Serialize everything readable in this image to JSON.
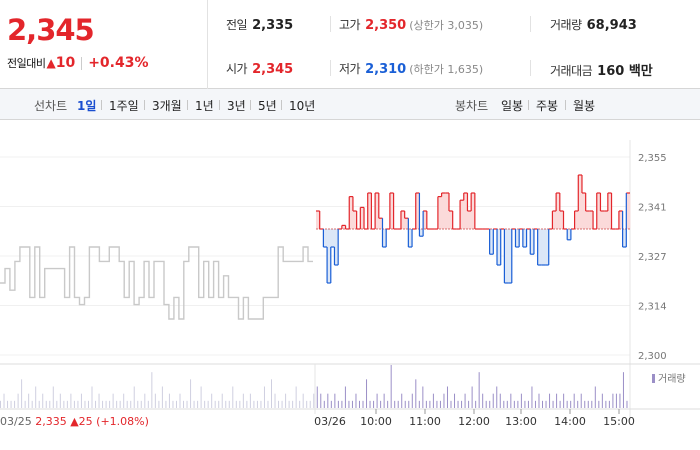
{
  "header": {
    "price": "2,345",
    "change_label": "전일대비",
    "change_arrow": "▲",
    "change_value": "10",
    "change_pct": "+0.43%",
    "prev_close": {
      "label": "전일",
      "value": "2,335"
    },
    "open": {
      "label": "시가",
      "value": "2,345"
    },
    "high": {
      "label": "고가",
      "value": "2,350",
      "sub": "(상한가 3,035)"
    },
    "low": {
      "label": "저가",
      "value": "2,310",
      "sub": "(하한가 1,635)"
    },
    "volume": {
      "label": "거래량",
      "value": "68,943"
    },
    "amount": {
      "label": "거래대금",
      "value": "160 백만"
    }
  },
  "tabs": {
    "line_label": "선차트",
    "line_tabs": [
      "1일",
      "1주일",
      "3개월",
      "1년",
      "3년",
      "5년",
      "10년"
    ],
    "active_line_tab": "1일",
    "candle_label": "봉차트",
    "candle_tabs": [
      "일봉",
      "주봉",
      "월봉"
    ]
  },
  "colors": {
    "up": "#e3262b",
    "down": "#1a5fd6",
    "prev_day": "#c9c9c9",
    "volume": "#9b8fc7"
  },
  "chart_data": {
    "type": "line",
    "y_ticks": [
      "2,355",
      "2,341",
      "2,327",
      "2,314",
      "2,300"
    ],
    "ylim": [
      2300,
      2355
    ],
    "baseline": 2335,
    "x_ticks": [
      "03/26",
      "10:00",
      "11:00",
      "12:00",
      "13:00",
      "14:00",
      "15:00"
    ],
    "volume_legend": "거래량",
    "footer": {
      "date": "03/25",
      "price": "2,335",
      "arrow": "▲",
      "change": "25",
      "pct": "(+1.08%)"
    },
    "series": [
      {
        "values": [
          2320,
          2324,
          2318,
          2326,
          2330,
          2330,
          2316,
          2330,
          2316,
          2324,
          2324,
          2324,
          2324,
          2316,
          2330,
          2316,
          2314,
          2316,
          2330,
          2330,
          2326,
          2326,
          2330,
          2330,
          2326,
          2316,
          2326,
          2314,
          2316,
          2326,
          2316,
          2326,
          2326,
          2314,
          2310,
          2316,
          2310,
          2326,
          2330,
          2330,
          2316,
          2326,
          2316,
          2326,
          2316,
          2322,
          2316,
          2316,
          2310,
          2316,
          2310,
          2310,
          2310,
          2316,
          2316,
          2316,
          2330,
          2326,
          2326,
          2326,
          2326,
          2330,
          2326,
          2326
        ]
      },
      {
        "values": [
          2340,
          2335,
          2330,
          2320,
          2330,
          2325,
          2335,
          2336,
          2335,
          2344,
          2340,
          2335,
          2341,
          2335,
          2345,
          2335,
          2345,
          2338,
          2330,
          2335,
          2345,
          2335,
          2335,
          2340,
          2338,
          2330,
          2335,
          2345,
          2333,
          2340,
          2335,
          2335,
          2335,
          2344,
          2345,
          2345,
          2340,
          2335,
          2335,
          2343,
          2345,
          2340,
          2345,
          2335,
          2335,
          2335,
          2335,
          2328,
          2335,
          2325,
          2335,
          2320,
          2320,
          2335,
          2330,
          2335,
          2330,
          2335,
          2328,
          2335,
          2325,
          2325,
          2325,
          2335,
          2340,
          2345,
          2340,
          2335,
          2332,
          2335,
          2340,
          2350,
          2345,
          2340,
          2340,
          2335,
          2345,
          2340,
          2340,
          2345,
          2335,
          2335,
          2340,
          2330,
          2345
        ]
      },
      {
        "values": [
          1,
          2,
          1,
          1,
          1,
          2,
          4,
          1,
          2,
          1,
          3,
          1,
          2,
          1,
          1,
          3,
          1,
          2,
          1,
          1,
          2,
          1,
          1,
          2,
          1,
          1,
          3,
          1,
          2,
          1,
          1,
          1,
          2,
          1,
          1,
          2,
          1,
          1,
          3,
          1,
          1,
          2,
          1,
          5,
          2,
          1,
          3,
          1,
          2,
          1,
          1,
          2,
          1,
          1,
          4,
          1,
          1,
          3,
          1,
          1,
          2,
          1,
          1,
          2,
          1,
          1,
          3,
          1,
          1,
          2,
          1,
          2,
          1,
          1,
          1,
          3,
          1,
          4,
          2,
          1,
          1,
          2,
          1,
          1,
          3,
          1,
          2,
          1,
          1,
          2,
          3,
          2,
          1,
          2,
          1,
          2,
          1,
          1,
          3,
          1,
          1,
          2,
          1,
          1,
          4,
          1,
          1,
          2,
          1,
          2,
          1,
          6,
          1,
          1,
          2,
          1,
          1,
          2,
          4,
          1,
          3,
          1,
          1,
          2,
          1,
          1,
          2,
          3,
          1,
          2,
          1,
          1,
          2,
          1,
          3,
          1,
          5,
          2,
          1,
          1,
          2,
          3,
          2,
          1,
          1,
          2,
          1,
          1,
          2,
          1,
          1,
          3,
          1,
          2,
          1,
          1,
          2,
          1,
          2,
          1,
          2,
          1,
          1,
          2,
          1,
          2,
          1,
          1,
          1,
          3,
          1,
          2,
          1,
          1,
          2,
          2,
          2,
          5,
          1
        ]
      }
    ]
  }
}
